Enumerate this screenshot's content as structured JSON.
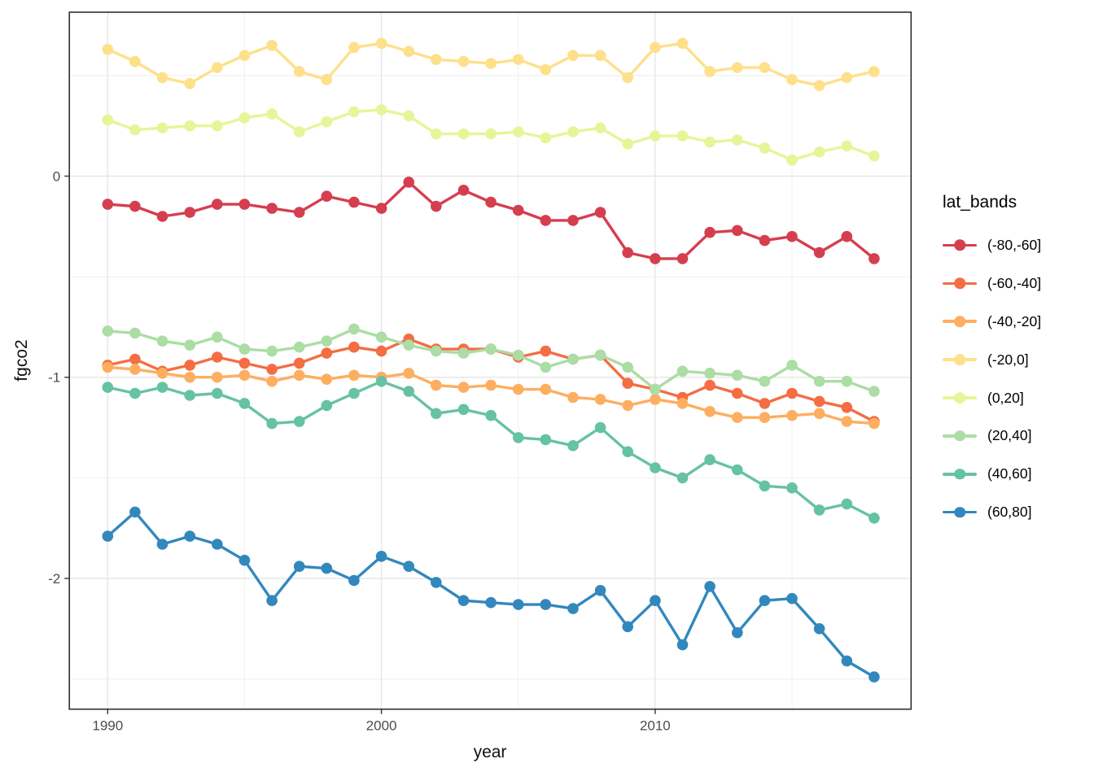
{
  "axes": {
    "xlabel": "year",
    "ylabel": "fgco2",
    "x_tick_labels": [
      "1990",
      "2000",
      "2010"
    ],
    "y_tick_labels": [
      "0",
      "-1",
      "-2"
    ]
  },
  "legend": {
    "title": "lat_bands",
    "position": "right"
  },
  "style": {
    "panel_border_color": "#2f2f2f",
    "major_grid_color": "#e7e7e7",
    "minor_grid_color": "#f2f2f2",
    "tick_mark_color": "#333333",
    "tick_label_color": "#4d4d4d",
    "background": "#ffffff"
  },
  "chart_data": {
    "type": "line",
    "title": "",
    "xlabel": "year",
    "ylabel": "fgco2",
    "legend_title": "lat_bands",
    "grid": true,
    "legend_position": "right",
    "x": [
      1990,
      1991,
      1992,
      1993,
      1994,
      1995,
      1996,
      1997,
      1998,
      1999,
      2000,
      2001,
      2002,
      2003,
      2004,
      2005,
      2006,
      2007,
      2008,
      2009,
      2010,
      2011,
      2012,
      2013,
      2014,
      2015,
      2016,
      2017,
      2018
    ],
    "x_tick_values": [
      1990,
      2000,
      2010
    ],
    "x_minor_tick_values": [
      1995,
      2005,
      2015
    ],
    "y_tick_values": [
      0,
      -1,
      -2
    ],
    "y_minor_tick_values": [
      0.5,
      -0.5,
      -1.5,
      -2.5
    ],
    "xlim": [
      1988.6,
      2019.35
    ],
    "ylim": [
      -2.65,
      0.815
    ],
    "series": [
      {
        "name": "(-80,-60]",
        "color": "#d53e4f",
        "values": [
          -0.14,
          -0.15,
          -0.2,
          -0.18,
          -0.14,
          -0.14,
          -0.16,
          -0.18,
          -0.1,
          -0.13,
          -0.16,
          -0.03,
          -0.15,
          -0.07,
          -0.13,
          -0.17,
          -0.22,
          -0.22,
          -0.18,
          -0.38,
          -0.41,
          -0.41,
          -0.28,
          -0.27,
          -0.32,
          -0.3,
          -0.38,
          -0.3,
          -0.41
        ]
      },
      {
        "name": "(-60,-40]",
        "color": "#f46d43",
        "values": [
          -0.94,
          -0.91,
          -0.97,
          -0.94,
          -0.9,
          -0.93,
          -0.96,
          -0.93,
          -0.88,
          -0.85,
          -0.87,
          -0.81,
          -0.86,
          -0.86,
          -0.86,
          -0.9,
          -0.87,
          -0.91,
          -0.89,
          -1.03,
          -1.06,
          -1.1,
          -1.04,
          -1.08,
          -1.13,
          -1.08,
          -1.12,
          -1.15,
          -1.22
        ]
      },
      {
        "name": "(-40,-20]",
        "color": "#fdae61",
        "values": [
          -0.95,
          -0.96,
          -0.98,
          -1.0,
          -1.0,
          -0.99,
          -1.02,
          -0.99,
          -1.01,
          -0.99,
          -1.0,
          -0.98,
          -1.04,
          -1.05,
          -1.04,
          -1.06,
          -1.06,
          -1.1,
          -1.11,
          -1.14,
          -1.11,
          -1.13,
          -1.17,
          -1.2,
          -1.2,
          -1.19,
          -1.18,
          -1.22,
          -1.23
        ]
      },
      {
        "name": "(-20,0]",
        "color": "#fee08b",
        "values": [
          0.63,
          0.57,
          0.49,
          0.46,
          0.54,
          0.6,
          0.65,
          0.52,
          0.48,
          0.64,
          0.66,
          0.62,
          0.58,
          0.57,
          0.56,
          0.58,
          0.53,
          0.6,
          0.6,
          0.49,
          0.64,
          0.66,
          0.52,
          0.54,
          0.54,
          0.48,
          0.45,
          0.49,
          0.52
        ]
      },
      {
        "name": "(0,20]",
        "color": "#e6f598",
        "values": [
          0.28,
          0.23,
          0.24,
          0.25,
          0.25,
          0.29,
          0.31,
          0.22,
          0.27,
          0.32,
          0.33,
          0.3,
          0.21,
          0.21,
          0.21,
          0.22,
          0.19,
          0.22,
          0.24,
          0.16,
          0.2,
          0.2,
          0.17,
          0.18,
          0.14,
          0.08,
          0.12,
          0.15,
          0.1
        ]
      },
      {
        "name": "(20,40]",
        "color": "#abdda4",
        "values": [
          -0.77,
          -0.78,
          -0.82,
          -0.84,
          -0.8,
          -0.86,
          -0.87,
          -0.85,
          -0.82,
          -0.76,
          -0.8,
          -0.84,
          -0.87,
          -0.88,
          -0.86,
          -0.89,
          -0.95,
          -0.91,
          -0.89,
          -0.95,
          -1.06,
          -0.97,
          -0.98,
          -0.99,
          -1.02,
          -0.94,
          -1.02,
          -1.02,
          -1.07
        ]
      },
      {
        "name": "(40,60]",
        "color": "#66c2a5",
        "values": [
          -1.05,
          -1.08,
          -1.05,
          -1.09,
          -1.08,
          -1.13,
          -1.23,
          -1.22,
          -1.14,
          -1.08,
          -1.02,
          -1.07,
          -1.18,
          -1.16,
          -1.19,
          -1.3,
          -1.31,
          -1.34,
          -1.25,
          -1.37,
          -1.45,
          -1.5,
          -1.41,
          -1.46,
          -1.54,
          -1.55,
          -1.66,
          -1.63,
          -1.7
        ]
      },
      {
        "name": "(60,80]",
        "color": "#3288bd",
        "values": [
          -1.79,
          -1.67,
          -1.83,
          -1.79,
          -1.83,
          -1.91,
          -2.11,
          -1.94,
          -1.95,
          -2.01,
          -1.89,
          -1.94,
          -2.02,
          -2.11,
          -2.12,
          -2.13,
          -2.13,
          -2.15,
          -2.06,
          -2.24,
          -2.11,
          -2.33,
          -2.04,
          -2.27,
          -2.11,
          -2.1,
          -2.25,
          -2.41,
          -2.49
        ]
      }
    ]
  }
}
